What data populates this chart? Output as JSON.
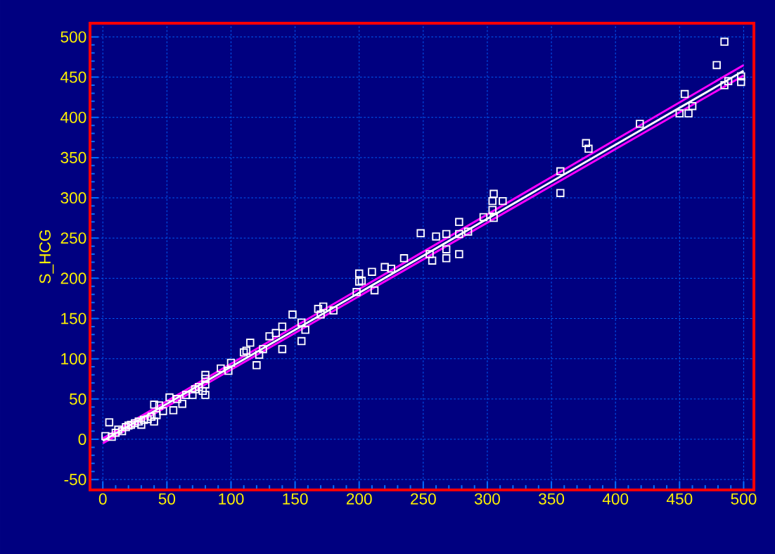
{
  "chart_data": {
    "type": "scatter",
    "ylabel": "S_HCG",
    "xlim": [
      -10,
      508
    ],
    "ylim": [
      -63,
      517
    ],
    "xticks": [
      0,
      50,
      100,
      150,
      200,
      250,
      300,
      350,
      400,
      450,
      500
    ],
    "yticks": [
      -50,
      0,
      50,
      100,
      150,
      200,
      250,
      300,
      350,
      400,
      450,
      500
    ],
    "grid": true,
    "marker": "square",
    "series": [
      {
        "color": "#ffffff",
        "x": [
          2,
          5,
          7,
          10,
          12,
          15,
          18,
          20,
          22,
          25,
          28,
          30,
          32,
          35,
          38,
          40,
          40,
          42,
          44,
          47,
          52,
          55,
          58,
          62,
          65,
          70,
          72,
          75,
          78,
          80,
          80,
          80,
          80,
          92,
          98,
          100,
          110,
          112,
          115,
          120,
          122,
          125,
          130,
          135,
          140,
          140,
          148,
          155,
          155,
          158,
          168,
          170,
          172,
          180,
          198,
          200,
          200,
          202,
          210,
          212,
          220,
          225,
          235,
          248,
          255,
          257,
          260,
          268,
          268,
          268,
          278,
          278,
          278,
          285,
          297,
          304,
          304,
          305,
          305,
          312,
          357,
          357,
          377,
          379,
          419,
          450,
          454,
          457,
          460,
          479,
          485,
          485,
          488,
          498,
          498
        ],
        "values": [
          4,
          21,
          3,
          8,
          12,
          10,
          15,
          17,
          18,
          20,
          22,
          18,
          24,
          25,
          28,
          43,
          22,
          30,
          42,
          35,
          52,
          36,
          50,
          44,
          55,
          55,
          62,
          65,
          60,
          80,
          75,
          55,
          68,
          88,
          85,
          95,
          108,
          110,
          120,
          92,
          105,
          112,
          128,
          132,
          112,
          140,
          155,
          145,
          122,
          136,
          162,
          155,
          165,
          160,
          183,
          206,
          196,
          197,
          208,
          185,
          214,
          212,
          225,
          256,
          230,
          222,
          252,
          255,
          236,
          225,
          270,
          255,
          230,
          258,
          276,
          296,
          285,
          305,
          275,
          296,
          333,
          306,
          368,
          361,
          392,
          405,
          429,
          405,
          414,
          465,
          494,
          440,
          445,
          451,
          444
        ]
      },
      {
        "type": "line",
        "color": "#ffffff",
        "marker": "none",
        "x": [
          0,
          500
        ],
        "values": [
          -2,
          458
        ]
      },
      {
        "type": "line",
        "color": "#ff00ff",
        "marker": "none",
        "x": [
          0,
          500
        ],
        "values": [
          1,
          465
        ]
      },
      {
        "type": "line",
        "color": "#ff00ff",
        "marker": "none",
        "x": [
          0,
          500
        ],
        "values": [
          -5,
          452
        ]
      }
    ]
  }
}
